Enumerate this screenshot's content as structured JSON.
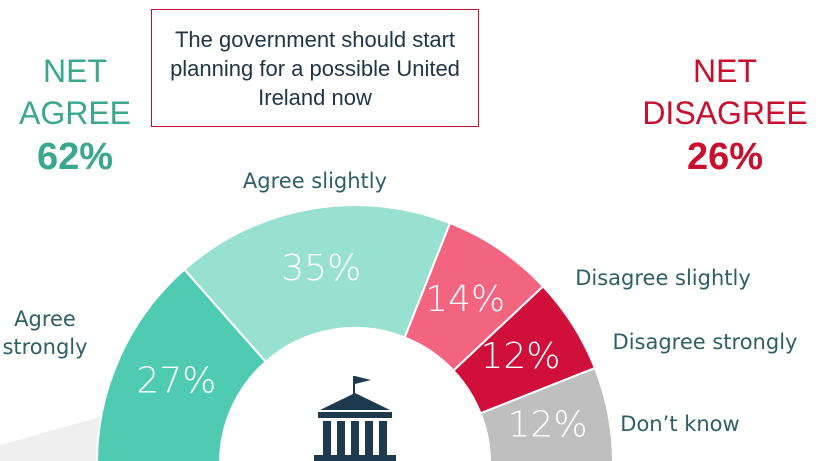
{
  "chart_data": {
    "type": "semi-donut",
    "title": "The government should start planning for a possible United Ireland now",
    "categories": [
      "Agree strongly",
      "Agree slightly",
      "Disagree slightly",
      "Disagree strongly",
      "Don’t know"
    ],
    "values": [
      27,
      35,
      14,
      12,
      12
    ],
    "value_labels": [
      "27%",
      "35%",
      "14%",
      "12%",
      "12%"
    ],
    "colors": [
      "#4ecbb0",
      "#98e1d1",
      "#f2647f",
      "#d0103a",
      "#bfbfbf"
    ],
    "net_agree": {
      "heading": [
        "NET",
        "AGREE"
      ],
      "value": 62,
      "value_label": "62%",
      "color": "#3aa88f"
    },
    "net_disagree": {
      "heading": [
        "NET",
        "DISAGREE"
      ],
      "value": 26,
      "value_label": "26%",
      "color": "#c8102e"
    }
  }
}
